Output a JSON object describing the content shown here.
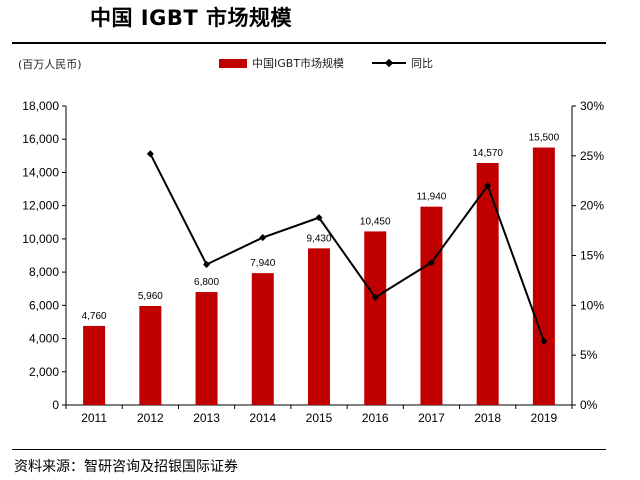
{
  "title": "中国 IGBT 市场规模",
  "unit_label": "(百万人民币)",
  "source": "资料来源：智研咨询及招银国际证券",
  "chart_data": {
    "type": "bar",
    "title": "中国 IGBT 市场规模",
    "ylabel": "(百万人民币)",
    "categories": [
      "2011",
      "2012",
      "2013",
      "2014",
      "2015",
      "2016",
      "2017",
      "2018",
      "2019"
    ],
    "series": [
      {
        "name": "中国IGBT市场规模",
        "type": "bar",
        "axis": "left",
        "color": "#c00000",
        "values": [
          4760,
          5960,
          6800,
          7940,
          9430,
          10450,
          11940,
          14570,
          15500
        ],
        "labels": [
          "4,760",
          "5,960",
          "6,800",
          "7,940",
          "9,430",
          "10,450",
          "11,940",
          "14,570",
          "15,500"
        ]
      },
      {
        "name": "同比",
        "type": "line",
        "axis": "right",
        "color": "#000000",
        "values": [
          null,
          25.2,
          14.1,
          16.8,
          18.8,
          10.8,
          14.3,
          22.0,
          6.4
        ]
      }
    ],
    "ylim": [
      0,
      18000
    ],
    "yticks": [
      "0",
      "2,000",
      "4,000",
      "6,000",
      "8,000",
      "10,000",
      "12,000",
      "14,000",
      "16,000",
      "18,000"
    ],
    "y2lim": [
      0,
      30
    ],
    "y2ticks": [
      "0%",
      "5%",
      "10%",
      "15%",
      "20%",
      "25%",
      "30%"
    ],
    "legend_position": "top-center",
    "grid": false
  }
}
